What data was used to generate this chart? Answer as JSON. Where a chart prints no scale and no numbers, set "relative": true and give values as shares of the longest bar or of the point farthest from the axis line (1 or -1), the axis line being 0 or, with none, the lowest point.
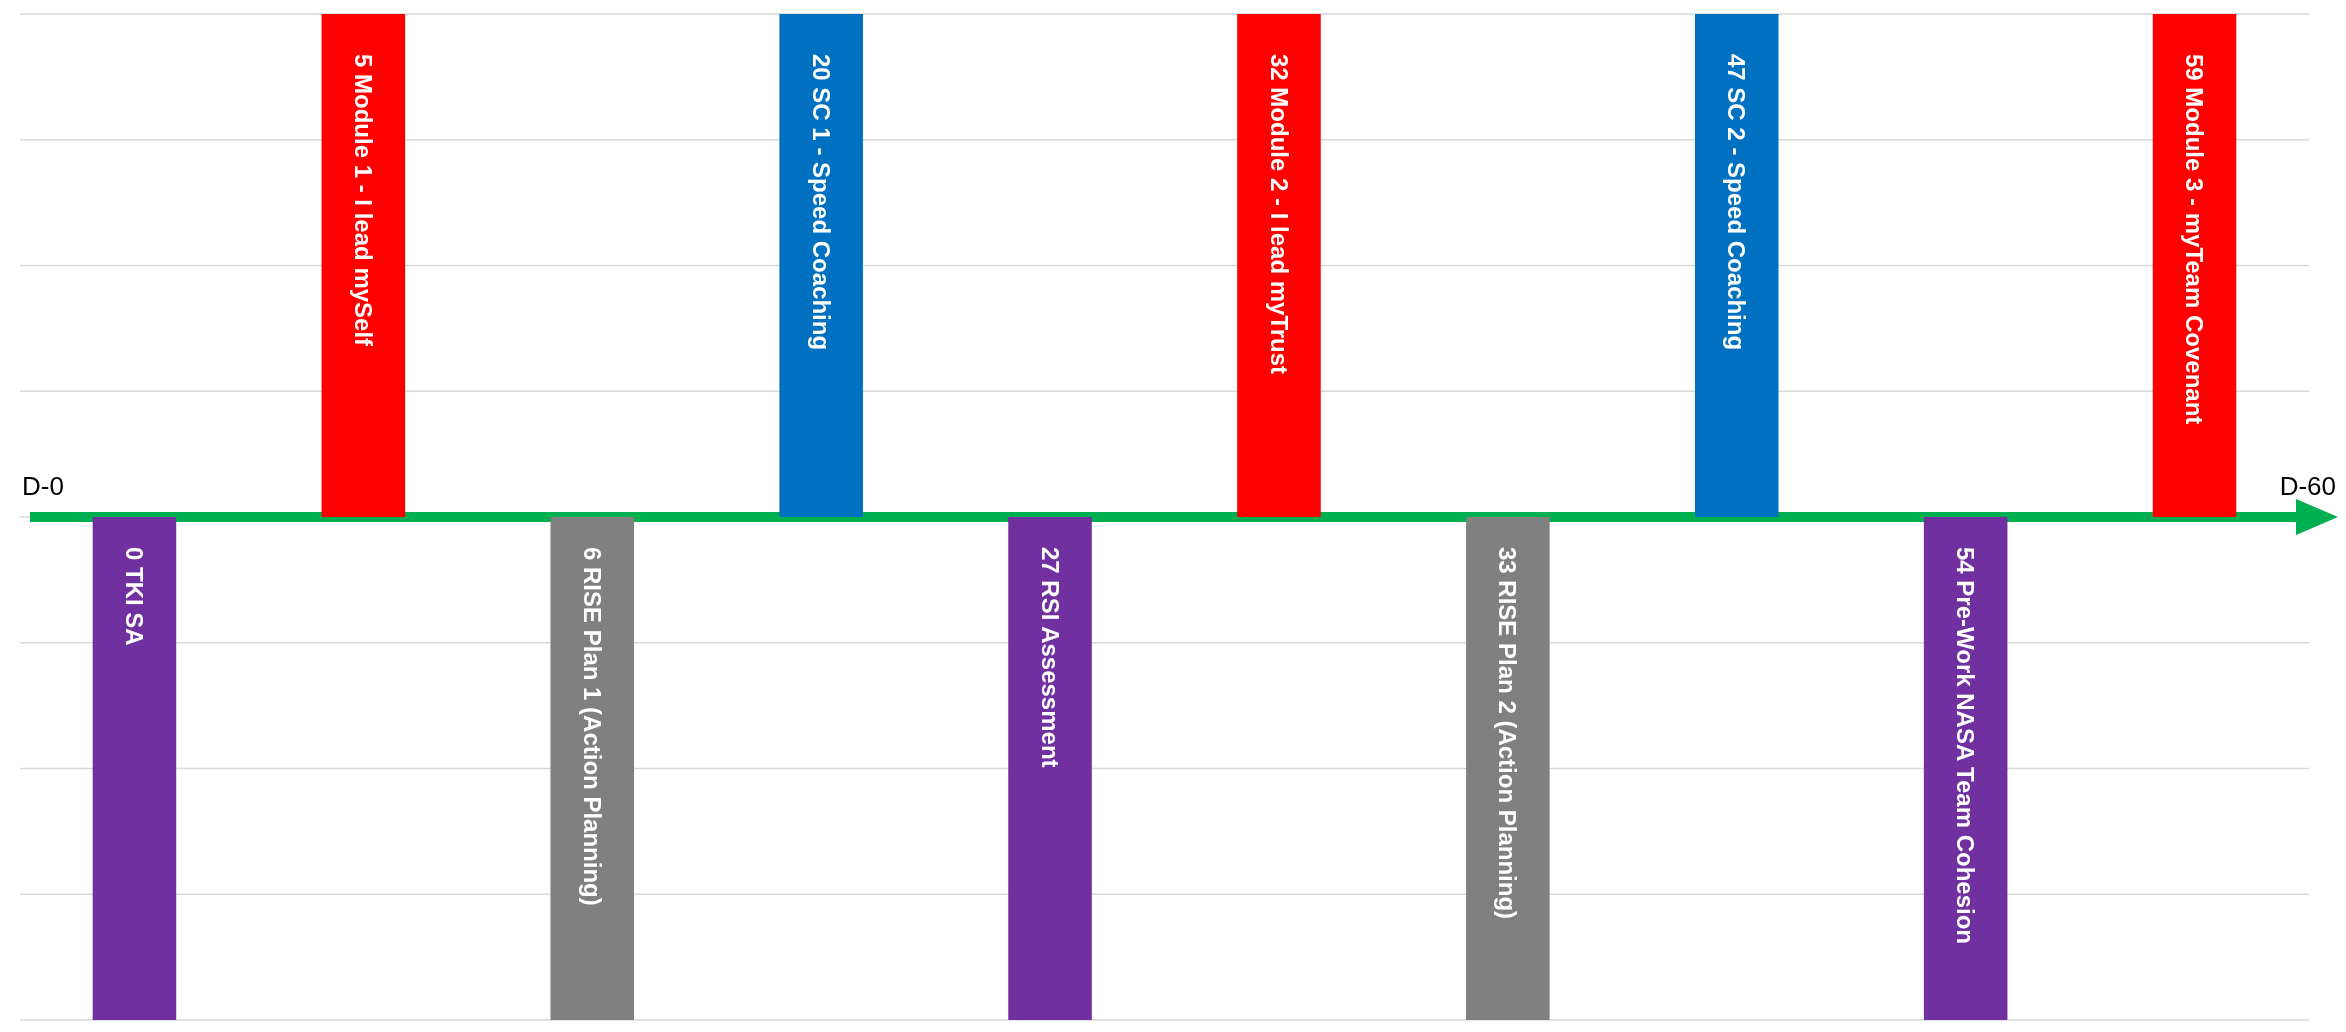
{
  "chart_data": {
    "type": "bar",
    "relative": true,
    "grid": true,
    "categories": [
      "0 TKI SA",
      "5 Module 1 - I lead mySelf",
      "6 RISE Plan 1 (Action Planning)",
      "20 SC 1 - Speed Coaching",
      "27 RSI Assessment",
      "32 Module 2 - I lead myTrust",
      "33 RISE Plan 2 (Action Planning)",
      "47 SC 2 - Speed Coaching",
      "54 Pre-Work NASA Team Cohesion",
      "59 Module 3 - myTeam Covenant"
    ],
    "values": [
      -1,
      1,
      -1,
      1,
      -1,
      1,
      -1,
      1,
      -1,
      1
    ],
    "colors": [
      "#7030a0",
      "#ff0000",
      "#808080",
      "#0070c0",
      "#7030a0",
      "#ff0000",
      "#808080",
      "#0070c0",
      "#7030a0",
      "#ff0000"
    ],
    "annotations": [
      "D-0",
      "D-60"
    ]
  }
}
